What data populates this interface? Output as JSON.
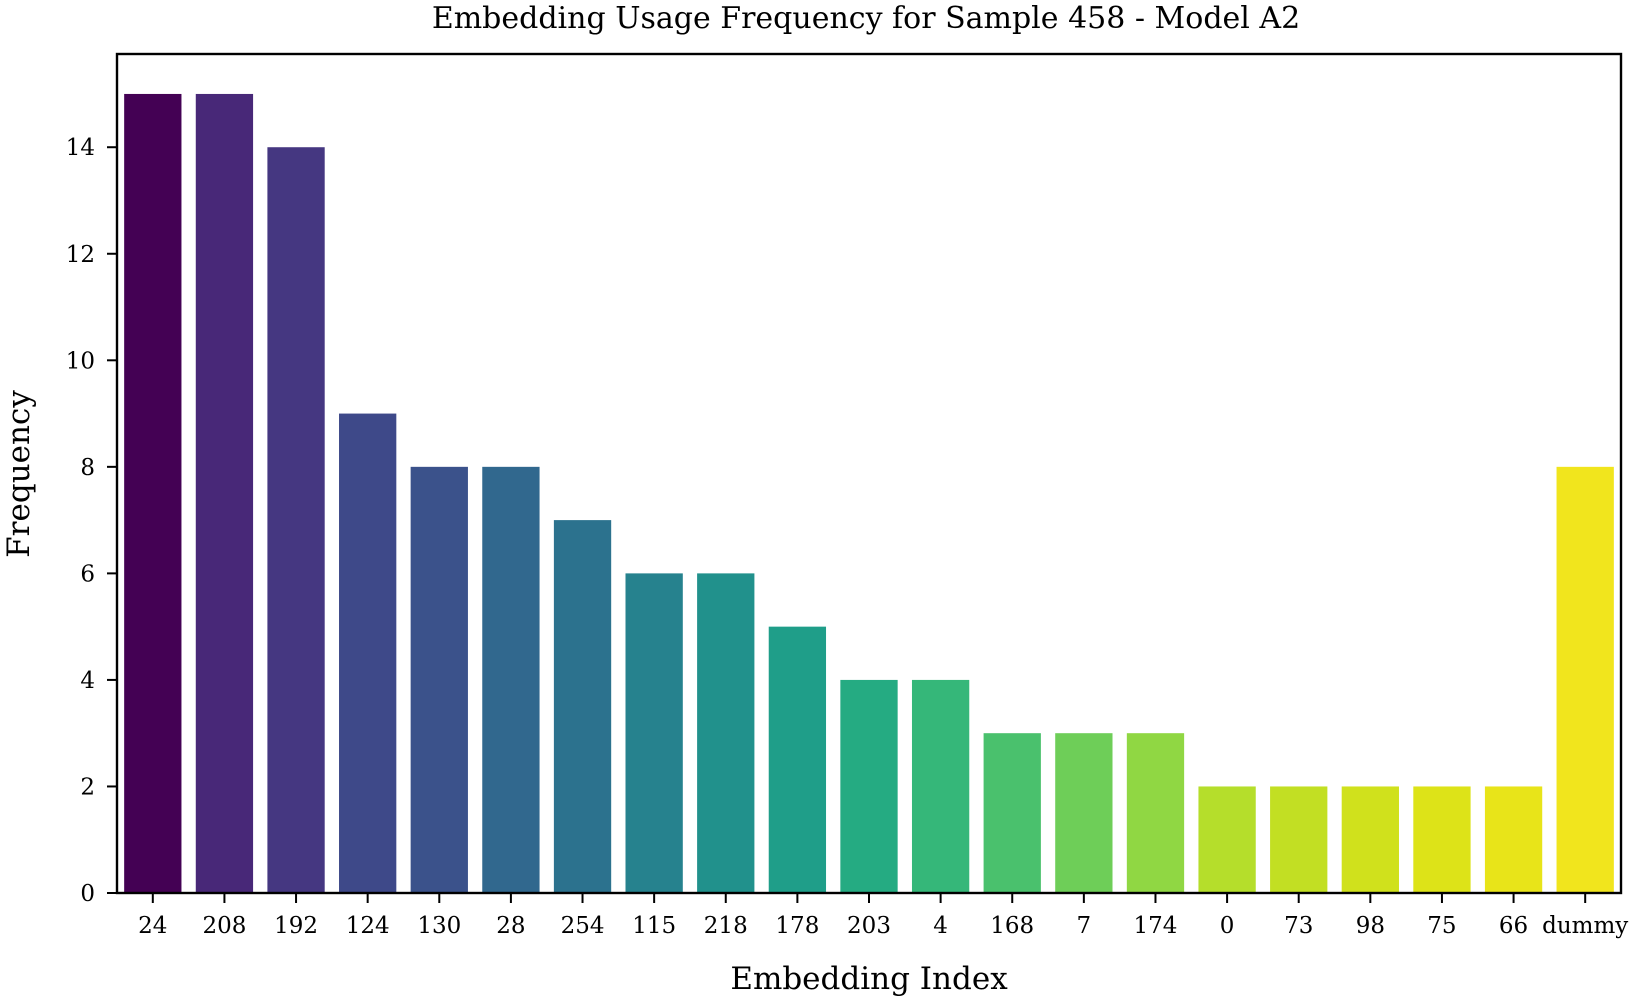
{
  "chart_data": {
    "type": "bar",
    "title": "Embedding Usage Frequency for Sample 458 - Model A2",
    "xlabel": "Embedding Index",
    "ylabel": "Frequency",
    "categories": [
      "24",
      "208",
      "192",
      "124",
      "130",
      "28",
      "254",
      "115",
      "218",
      "178",
      "203",
      "4",
      "168",
      "7",
      "174",
      "0",
      "73",
      "98",
      "75",
      "66",
      "dummy"
    ],
    "values": [
      15,
      15,
      14,
      9,
      8,
      8,
      7,
      6,
      6,
      5,
      4,
      4,
      3,
      3,
      3,
      2,
      2,
      2,
      2,
      2,
      8
    ],
    "colors": [
      "#440154",
      "#482878",
      "#453781",
      "#3e4989",
      "#3b528b",
      "#31688e",
      "#2c728e",
      "#26828e",
      "#21918c",
      "#1f9e89",
      "#25ab82",
      "#35b779",
      "#4ac16d",
      "#6ece58",
      "#90d743",
      "#b5de2b",
      "#c2df23",
      "#d0e11c",
      "#dde318",
      "#e8e419",
      "#f1e51d"
    ],
    "ylim": [
      0,
      15.75
    ],
    "yticks": [
      0,
      2,
      4,
      6,
      8,
      10,
      12,
      14
    ],
    "grid": false
  }
}
